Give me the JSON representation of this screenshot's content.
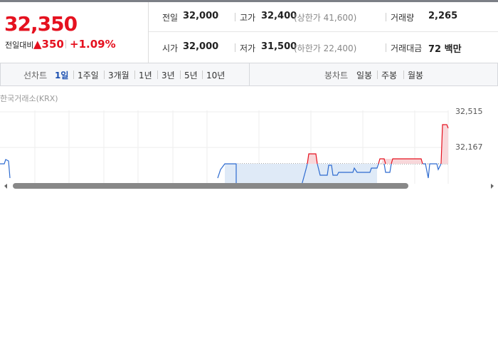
{
  "quote": {
    "price": "32,350",
    "change_label": "전일대비",
    "change": "350",
    "rate": "+1.09%"
  },
  "stats": [
    [
      {
        "label": "전일",
        "value": "32,000"
      },
      {
        "label": "고가",
        "value": "32,400",
        "note": "(상한가 41,600)"
      },
      {
        "label": "거래량",
        "value": "2,265"
      }
    ],
    [
      {
        "label": "시가",
        "value": "32,000"
      },
      {
        "label": "저가",
        "value": "31,500",
        "note": "(하한가 22,400)"
      },
      {
        "label": "거래대금",
        "value": "72 백만"
      }
    ]
  ],
  "tabs": {
    "line_label": "선차트",
    "line": [
      "1일",
      "1주일",
      "3개월",
      "1년",
      "3년",
      "5년",
      "10년"
    ],
    "candle_label": "봉차트",
    "candle": [
      "일봉",
      "주봉",
      "월봉"
    ]
  },
  "chart": {
    "source": "한국거래소(KRX)",
    "yticks": [
      "32,515",
      "32,167"
    ]
  }
}
